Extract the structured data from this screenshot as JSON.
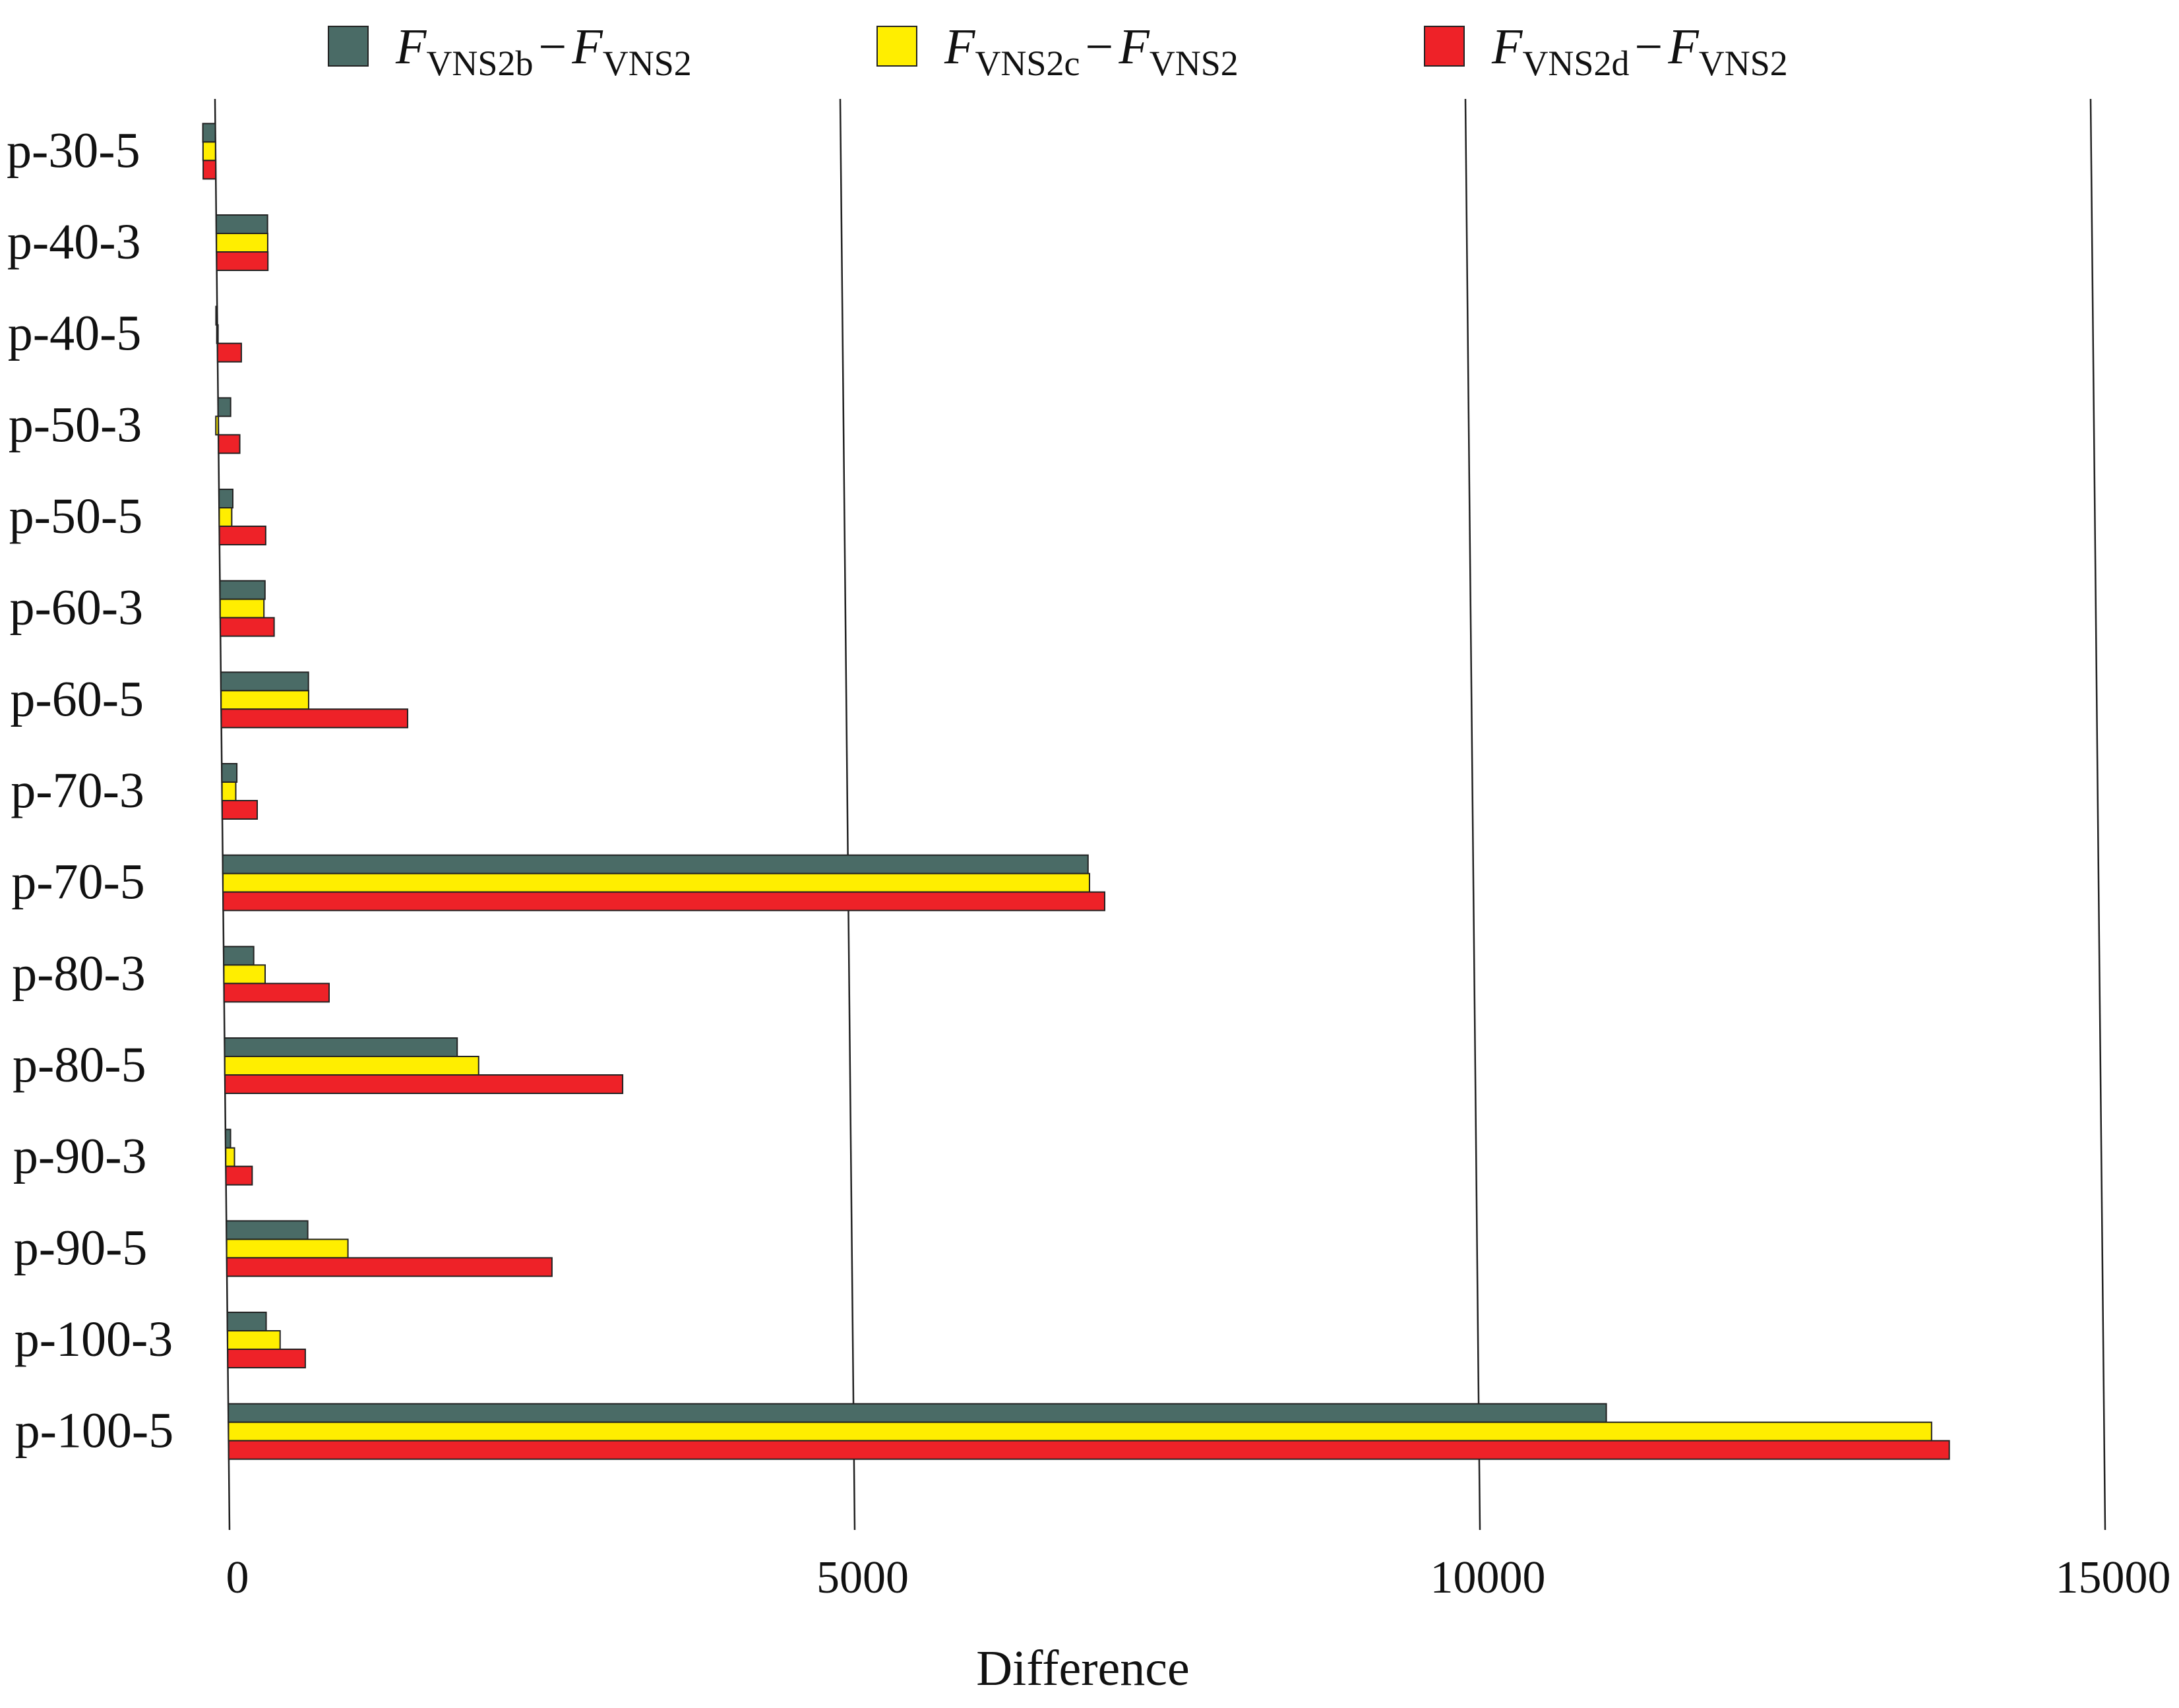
{
  "chart_data": {
    "type": "bar",
    "orientation": "horizontal",
    "xlabel": "Difference",
    "xlim": [
      0,
      15000
    ],
    "xticks": [
      "0",
      "5000",
      "10000",
      "15000"
    ],
    "grid": true,
    "legend_position": "top",
    "categories": [
      "p-30-5",
      "p-40-3",
      "p-40-5",
      "p-50-3",
      "p-50-5",
      "p-60-3",
      "p-60-5",
      "p-70-3",
      "p-70-5",
      "p-80-3",
      "p-80-5",
      "p-90-3",
      "p-90-5",
      "p-100-3",
      "p-100-5"
    ],
    "series": [
      {
        "name_parts": {
          "f1": "F",
          "s1": "VNS2b",
          "op": "−",
          "f2": "F",
          "s2": "VNS2"
        },
        "color": "#4a6b66",
        "values": [
          -100,
          410,
          -10,
          100,
          110,
          360,
          700,
          120,
          6920,
          240,
          1860,
          40,
          650,
          310,
          11020
        ]
      },
      {
        "name_parts": {
          "f1": "F",
          "s1": "VNS2c",
          "op": "−",
          "f2": "F",
          "s2": "VNS2"
        },
        "color": "#ffee00",
        "values": [
          -100,
          410,
          -5,
          -20,
          100,
          350,
          700,
          110,
          6930,
          330,
          2030,
          70,
          970,
          420,
          13620
        ]
      },
      {
        "name_parts": {
          "f1": "F",
          "s1": "VNS2d",
          "op": "−",
          "f2": "F",
          "s2": "VNS2"
        },
        "color": "#ee2228",
        "values": [
          -100,
          410,
          190,
          170,
          370,
          430,
          1490,
          280,
          7050,
          840,
          3180,
          210,
          2600,
          620,
          13760
        ]
      }
    ]
  }
}
